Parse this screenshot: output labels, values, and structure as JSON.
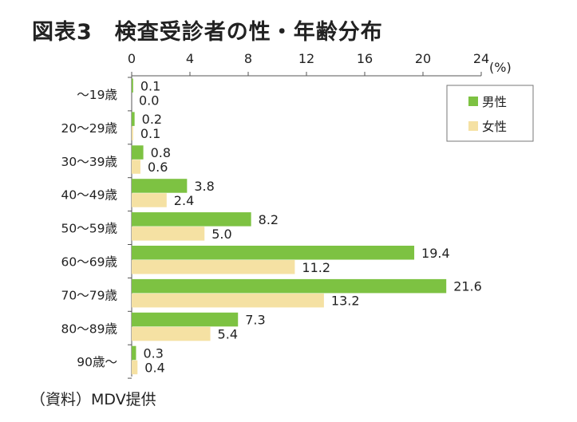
{
  "chart_data": {
    "type": "bar",
    "orientation": "horizontal",
    "title": "図表3　検査受診者の性・年齢分布",
    "unit_label": "(%)",
    "xlim": [
      0,
      24
    ],
    "x_ticks": [
      "0",
      "4",
      "8",
      "12",
      "16",
      "20",
      "24"
    ],
    "x_axis_position": "top",
    "grid": false,
    "legend_position": "top-right",
    "categories": [
      "〜19歳",
      "20〜29歳",
      "30〜39歳",
      "40〜49歳",
      "50〜59歳",
      "60〜69歳",
      "70〜79歳",
      "80〜89歳",
      "90歳〜"
    ],
    "series": [
      {
        "name": "男性",
        "color": "#7dc242",
        "values": [
          0.1,
          0.2,
          0.8,
          3.8,
          8.2,
          19.4,
          21.6,
          7.3,
          0.3
        ],
        "labels": [
          "0.1",
          "0.2",
          "0.8",
          "3.8",
          "8.2",
          "19.4",
          "21.6",
          "7.3",
          "0.3"
        ]
      },
      {
        "name": "女性",
        "color": "#f5e1a3",
        "values": [
          0.0,
          0.1,
          0.6,
          2.4,
          5.0,
          11.2,
          13.2,
          5.4,
          0.4
        ],
        "labels": [
          "0.0",
          "0.1",
          "0.6",
          "2.4",
          "5.0",
          "11.2",
          "13.2",
          "5.4",
          "0.4"
        ]
      }
    ]
  },
  "source": "（資料）MDV提供"
}
